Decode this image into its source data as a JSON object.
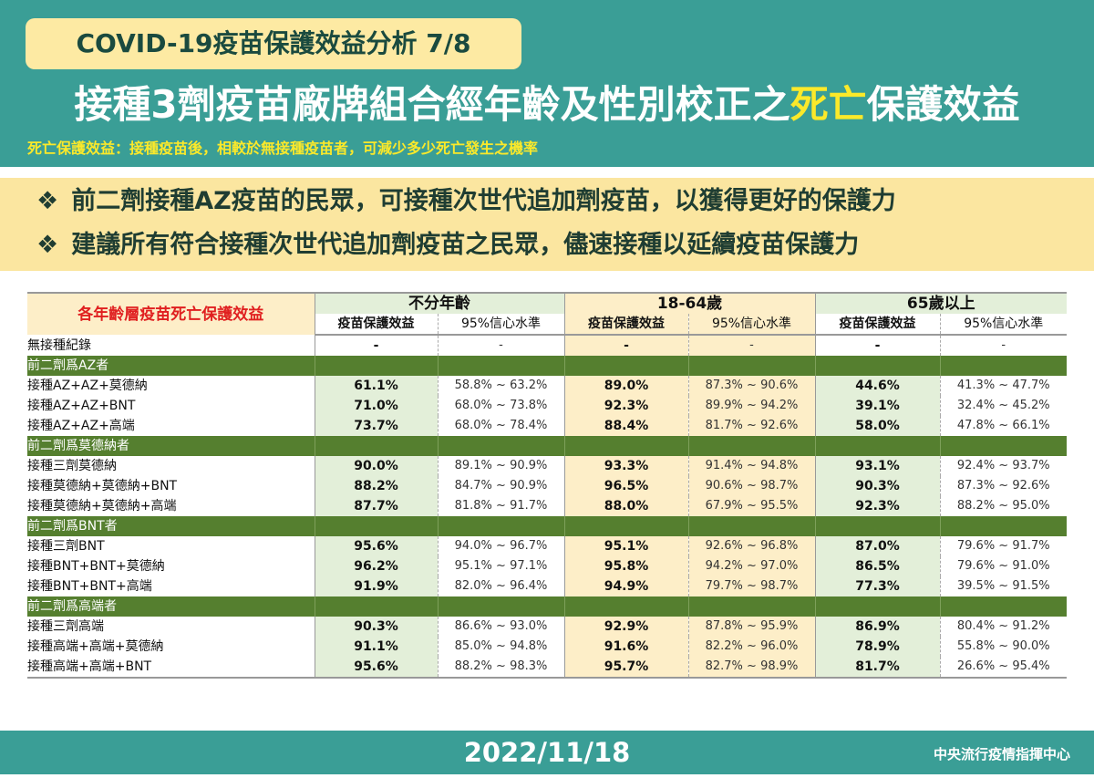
{
  "header": {
    "badge": "COVID-19疫苗保護效益分析 7/8",
    "title_pre": "接種3劑疫苗廠牌組合經年齡及性別校正之",
    "title_highlight": "死亡",
    "title_post": "保護效益",
    "subtitle": "死亡保護效益：接種疫苗後，相較於無接種疫苗者，可減少多少死亡發生之機率"
  },
  "points": [
    "前二劑接種AZ疫苗的民眾，可接種次世代追加劑疫苗，以獲得更好的保護力",
    "建議所有符合接種次世代追加劑疫苗之民眾，儘速接種以延續疫苗保護力"
  ],
  "point_icon": "diamond-cluster-icon",
  "table": {
    "corner": "各年齡層疫苗死亡保護效益",
    "groups": [
      "不分年齡",
      "18-64歲",
      "65歲以上"
    ],
    "sub_headers": [
      "疫苗保護效益",
      "95%信心水準"
    ],
    "no_record": {
      "label": "無接種紀錄",
      "cells": [
        "-",
        "-",
        "-",
        "-",
        "-",
        "-"
      ]
    },
    "sections": [
      {
        "title": "前二劑爲AZ者",
        "rows": [
          {
            "label": "接種AZ+AZ+莫德納",
            "cells": [
              "61.1%",
              "58.8% ~ 63.2%",
              "89.0%",
              "87.3% ~ 90.6%",
              "44.6%",
              "41.3% ~ 47.7%"
            ]
          },
          {
            "label": "接種AZ+AZ+BNT",
            "cells": [
              "71.0%",
              "68.0% ~ 73.8%",
              "92.3%",
              "89.9% ~ 94.2%",
              "39.1%",
              "32.4% ~ 45.2%"
            ]
          },
          {
            "label": "接種AZ+AZ+高端",
            "cells": [
              "73.7%",
              "68.0% ~ 78.4%",
              "88.4%",
              "81.7% ~ 92.6%",
              "58.0%",
              "47.8% ~ 66.1%"
            ]
          }
        ]
      },
      {
        "title": "前二劑爲莫德納者",
        "rows": [
          {
            "label": "接種三劑莫德納",
            "cells": [
              "90.0%",
              "89.1% ~ 90.9%",
              "93.3%",
              "91.4% ~ 94.8%",
              "93.1%",
              "92.4% ~ 93.7%"
            ]
          },
          {
            "label": "接種莫德納+莫德納+BNT",
            "cells": [
              "88.2%",
              "84.7% ~ 90.9%",
              "96.5%",
              "90.6% ~ 98.7%",
              "90.3%",
              "87.3% ~ 92.6%"
            ]
          },
          {
            "label": "接種莫德納+莫德納+高端",
            "cells": [
              "87.7%",
              "81.8% ~ 91.7%",
              "88.0%",
              "67.9% ~ 95.5%",
              "92.3%",
              "88.2% ~ 95.0%"
            ]
          }
        ]
      },
      {
        "title": "前二劑爲BNT者",
        "rows": [
          {
            "label": "接種三劑BNT",
            "cells": [
              "95.6%",
              "94.0% ~ 96.7%",
              "95.1%",
              "92.6% ~ 96.8%",
              "87.0%",
              "79.6% ~ 91.7%"
            ]
          },
          {
            "label": "接種BNT+BNT+莫德納",
            "cells": [
              "96.2%",
              "95.1% ~ 97.1%",
              "95.8%",
              "94.2% ~ 97.0%",
              "86.5%",
              "79.6% ~ 91.0%"
            ]
          },
          {
            "label": "接種BNT+BNT+高端",
            "cells": [
              "91.9%",
              "82.0% ~ 96.4%",
              "94.9%",
              "79.7% ~ 98.7%",
              "77.3%",
              "39.5% ~ 91.5%"
            ]
          }
        ]
      },
      {
        "title": "前二劑爲高端者",
        "rows": [
          {
            "label": "接種三劑高端",
            "cells": [
              "90.3%",
              "86.6% ~ 93.0%",
              "92.9%",
              "87.8% ~ 95.9%",
              "86.9%",
              "80.4% ~ 91.2%"
            ]
          },
          {
            "label": "接種高端+高端+莫德納",
            "cells": [
              "91.1%",
              "85.0% ~ 94.8%",
              "91.6%",
              "82.2% ~ 96.0%",
              "78.9%",
              "55.8% ~ 90.0%"
            ]
          },
          {
            "label": "接種高端+高端+BNT",
            "cells": [
              "95.6%",
              "88.2% ~ 98.3%",
              "95.7%",
              "82.7% ~ 98.9%",
              "81.7%",
              "26.6% ~ 95.4%"
            ]
          }
        ]
      }
    ]
  },
  "footer": {
    "date": "2022/11/18",
    "org": "中央流行疫情指揮中心"
  }
}
